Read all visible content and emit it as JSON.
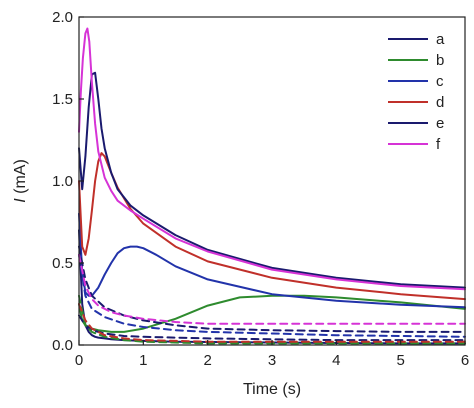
{
  "chart_data": {
    "type": "line",
    "xlabel": "Time (s)",
    "ylabel_italic": "I",
    "ylabel_rest": " (mA)",
    "xlim": [
      0,
      6
    ],
    "ylim": [
      0,
      2.0
    ],
    "xticks": [
      0,
      1,
      2,
      3,
      4,
      5,
      6
    ],
    "yticks": [
      0.0,
      0.5,
      1.0,
      1.5,
      2.0
    ],
    "xtick_labels": [
      "0",
      "1",
      "2",
      "3",
      "4",
      "5",
      "6"
    ],
    "ytick_labels": [
      "0.0",
      "0.5",
      "1.0",
      "1.5",
      "2.0"
    ],
    "grid": false,
    "legend_position": "top-right",
    "series": [
      {
        "name": "a",
        "color": "#1a1a6e",
        "style": "solid",
        "x": [
          0.0,
          0.05,
          0.1,
          0.15,
          0.2,
          0.25,
          0.3,
          0.4,
          0.5,
          0.7,
          1.0,
          1.5,
          2.0,
          3.0,
          4.0,
          5.0,
          6.0
        ],
        "y": [
          0.7,
          0.25,
          0.12,
          0.08,
          0.06,
          0.05,
          0.045,
          0.04,
          0.035,
          0.03,
          0.025,
          0.02,
          0.018,
          0.015,
          0.012,
          0.01,
          0.01
        ]
      },
      {
        "name": "b",
        "color": "#2e8b2e",
        "style": "solid",
        "x": [
          0.0,
          0.05,
          0.1,
          0.2,
          0.3,
          0.5,
          0.7,
          1.0,
          1.5,
          2.0,
          2.5,
          3.0,
          3.5,
          4.0,
          5.0,
          6.0
        ],
        "y": [
          0.25,
          0.15,
          0.12,
          0.1,
          0.09,
          0.08,
          0.08,
          0.1,
          0.16,
          0.24,
          0.29,
          0.3,
          0.3,
          0.29,
          0.26,
          0.22
        ]
      },
      {
        "name": "c",
        "color": "#2233aa",
        "style": "solid",
        "x": [
          0.0,
          0.05,
          0.1,
          0.15,
          0.2,
          0.3,
          0.4,
          0.5,
          0.6,
          0.7,
          0.8,
          0.9,
          1.0,
          1.2,
          1.5,
          2.0,
          3.0,
          4.0,
          5.0,
          6.0
        ],
        "y": [
          0.8,
          0.45,
          0.32,
          0.3,
          0.3,
          0.35,
          0.43,
          0.5,
          0.56,
          0.59,
          0.6,
          0.6,
          0.59,
          0.55,
          0.48,
          0.4,
          0.31,
          0.27,
          0.245,
          0.23
        ]
      },
      {
        "name": "d",
        "color": "#c0302a",
        "style": "solid",
        "x": [
          0.0,
          0.05,
          0.1,
          0.15,
          0.2,
          0.25,
          0.3,
          0.35,
          0.4,
          0.5,
          0.6,
          0.8,
          1.0,
          1.5,
          2.0,
          3.0,
          4.0,
          5.0,
          6.0
        ],
        "y": [
          1.0,
          0.6,
          0.55,
          0.65,
          0.82,
          1.0,
          1.12,
          1.17,
          1.15,
          1.05,
          0.96,
          0.83,
          0.74,
          0.6,
          0.51,
          0.41,
          0.35,
          0.31,
          0.28
        ]
      },
      {
        "name": "e",
        "color": "#1a1a6e",
        "style": "solid",
        "x": [
          0.0,
          0.05,
          0.1,
          0.15,
          0.2,
          0.25,
          0.3,
          0.35,
          0.4,
          0.5,
          0.6,
          0.8,
          1.0,
          1.5,
          2.0,
          3.0,
          4.0,
          5.0,
          6.0
        ],
        "y": [
          1.2,
          0.95,
          1.15,
          1.45,
          1.65,
          1.66,
          1.5,
          1.32,
          1.2,
          1.05,
          0.95,
          0.85,
          0.79,
          0.67,
          0.58,
          0.47,
          0.41,
          0.37,
          0.35
        ]
      },
      {
        "name": "f",
        "color": "#d633d6",
        "style": "solid",
        "x": [
          0.0,
          0.03,
          0.06,
          0.1,
          0.13,
          0.16,
          0.2,
          0.25,
          0.3,
          0.4,
          0.5,
          0.6,
          0.8,
          1.0,
          1.5,
          2.0,
          3.0,
          4.0,
          5.0,
          6.0
        ],
        "y": [
          1.3,
          1.55,
          1.75,
          1.9,
          1.93,
          1.85,
          1.6,
          1.35,
          1.18,
          1.02,
          0.94,
          0.88,
          0.82,
          0.77,
          0.65,
          0.57,
          0.46,
          0.4,
          0.36,
          0.34
        ]
      },
      {
        "name": "a-dashed",
        "color": "#1a1a6e",
        "style": "dashed",
        "x": [
          0.0,
          0.1,
          0.2,
          0.4,
          0.7,
          1.0,
          2.0,
          3.0,
          4.0,
          5.0,
          6.0
        ],
        "y": [
          0.18,
          0.12,
          0.09,
          0.07,
          0.055,
          0.05,
          0.04,
          0.035,
          0.03,
          0.03,
          0.03
        ]
      },
      {
        "name": "b-dashed",
        "color": "#2e8b2e",
        "style": "dashed",
        "x": [
          0.0,
          0.1,
          0.2,
          0.4,
          0.7,
          1.0,
          2.0,
          3.0,
          4.0,
          5.0,
          6.0
        ],
        "y": [
          0.3,
          0.12,
          0.08,
          0.05,
          0.03,
          0.02,
          0.01,
          0.01,
          0.01,
          0.01,
          0.01
        ]
      },
      {
        "name": "c-dashed",
        "color": "#2233aa",
        "style": "dashed",
        "x": [
          0.0,
          0.1,
          0.2,
          0.4,
          0.7,
          1.0,
          1.5,
          2.0,
          3.0,
          4.0,
          5.0,
          6.0
        ],
        "y": [
          0.55,
          0.3,
          0.22,
          0.17,
          0.13,
          0.11,
          0.09,
          0.08,
          0.07,
          0.06,
          0.055,
          0.05
        ]
      },
      {
        "name": "d-dashed",
        "color": "#c0302a",
        "style": "dashed",
        "x": [
          0.0,
          0.1,
          0.2,
          0.4,
          0.7,
          1.0,
          1.5,
          2.0,
          3.0,
          4.0,
          5.0,
          6.0
        ],
        "y": [
          0.25,
          0.15,
          0.1,
          0.06,
          0.04,
          0.03,
          0.025,
          0.02,
          0.02,
          0.02,
          0.02,
          0.02
        ]
      },
      {
        "name": "e-dashed",
        "color": "#1a1a6e",
        "style": "dashed",
        "x": [
          0.0,
          0.1,
          0.2,
          0.4,
          0.7,
          1.0,
          1.5,
          2.0,
          3.0,
          4.0,
          5.0,
          6.0
        ],
        "y": [
          0.6,
          0.4,
          0.3,
          0.23,
          0.18,
          0.15,
          0.12,
          0.1,
          0.09,
          0.085,
          0.08,
          0.08
        ]
      },
      {
        "name": "f-dashed",
        "color": "#d633d6",
        "style": "dashed",
        "x": [
          0.0,
          0.1,
          0.2,
          0.3,
          0.5,
          0.7,
          1.0,
          1.5,
          2.0,
          3.0,
          4.0,
          5.0,
          6.0
        ],
        "y": [
          0.55,
          0.36,
          0.28,
          0.24,
          0.2,
          0.18,
          0.16,
          0.14,
          0.13,
          0.13,
          0.13,
          0.13,
          0.13
        ]
      }
    ],
    "legend": [
      {
        "label": "a",
        "color": "#1a1a6e"
      },
      {
        "label": "b",
        "color": "#2e8b2e"
      },
      {
        "label": "c",
        "color": "#2233aa"
      },
      {
        "label": "d",
        "color": "#c0302a"
      },
      {
        "label": "e",
        "color": "#1a1a6e"
      },
      {
        "label": "f",
        "color": "#d633d6"
      }
    ]
  }
}
